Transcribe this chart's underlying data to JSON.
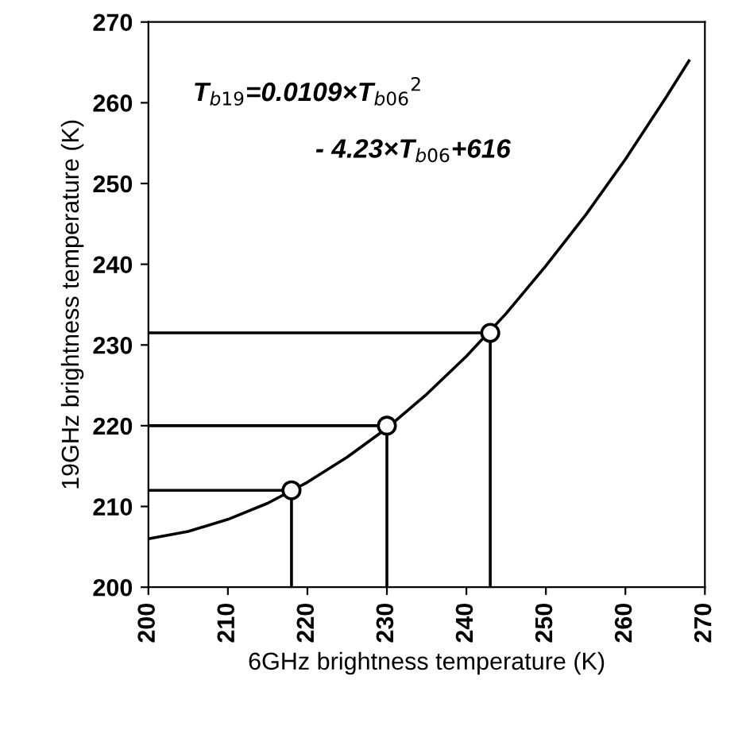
{
  "chart_data": {
    "type": "line",
    "xlabel": "6GHz brightness temperature (K)",
    "ylabel": "19GHz brightness temperature (K)",
    "xlim": [
      200,
      270
    ],
    "ylim": [
      200,
      270
    ],
    "xticks": [
      200,
      210,
      220,
      230,
      240,
      250,
      260,
      270
    ],
    "yticks": [
      200,
      210,
      220,
      230,
      240,
      250,
      260,
      270
    ],
    "grid": false,
    "annotations": [
      "T$_{b19}$=0.0109×T$_{b06}$$^{2}$",
      "- 4.23×T$_{b06}$+616"
    ],
    "series": [
      {
        "color": "#000000",
        "x": [
          200,
          205,
          210,
          215,
          220,
          225,
          230,
          235,
          240,
          245,
          250,
          255,
          260,
          265,
          268
        ],
        "values": [
          206.0,
          206.9,
          208.4,
          210.4,
          213.0,
          216.1,
          219.7,
          223.9,
          228.6,
          233.9,
          239.8,
          246.1,
          253.0,
          260.5,
          265.2
        ]
      },
      {
        "type": "line",
        "color": "#000000",
        "x": [
          200,
          218,
          218
        ],
        "values": [
          212,
          212,
          200
        ]
      },
      {
        "type": "line",
        "color": "#000000",
        "x": [
          200,
          230,
          230
        ],
        "values": [
          220,
          220,
          200
        ]
      },
      {
        "type": "line",
        "color": "#000000",
        "x": [
          200,
          243,
          243
        ],
        "values": [
          231.5,
          231.5,
          200
        ]
      },
      {
        "type": "scatter",
        "color": "#000000",
        "marker": "circle",
        "x": [
          218,
          230,
          243
        ],
        "values": [
          212,
          220,
          231.5
        ]
      }
    ]
  }
}
